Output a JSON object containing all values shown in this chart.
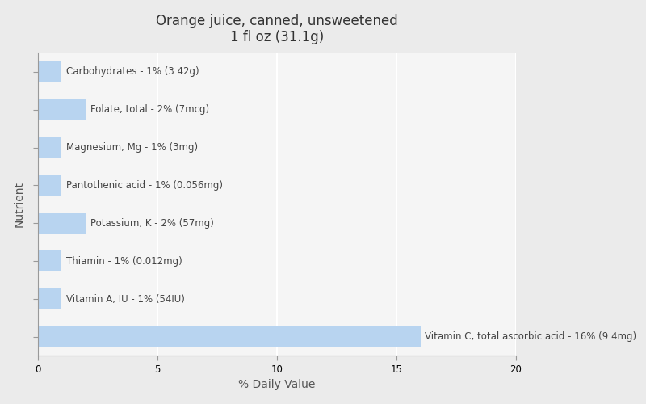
{
  "title_line1": "Orange juice, canned, unsweetened",
  "title_line2": "1 fl oz (31.1g)",
  "xlabel": "% Daily Value",
  "ylabel": "Nutrient",
  "background_color": "#ebebeb",
  "plot_background_color": "#f5f5f5",
  "bar_color": "#b8d4f0",
  "bar_edge_color": "#b8d4f0",
  "nutrients": [
    "Carbohydrates - 1% (3.42g)",
    "Folate, total - 2% (7mcg)",
    "Magnesium, Mg - 1% (3mg)",
    "Pantothenic acid - 1% (0.056mg)",
    "Potassium, K - 2% (57mg)",
    "Thiamin - 1% (0.012mg)",
    "Vitamin A, IU - 1% (54IU)",
    "Vitamin C, total ascorbic acid - 16% (9.4mg)"
  ],
  "values": [
    1,
    2,
    1,
    1,
    2,
    1,
    1,
    16
  ],
  "xlim": [
    0,
    20
  ],
  "xticks": [
    0,
    5,
    10,
    15,
    20
  ],
  "grid_color": "#ffffff",
  "title_fontsize": 12,
  "label_fontsize": 8.5,
  "axis_label_fontsize": 10,
  "bar_height": 0.55
}
